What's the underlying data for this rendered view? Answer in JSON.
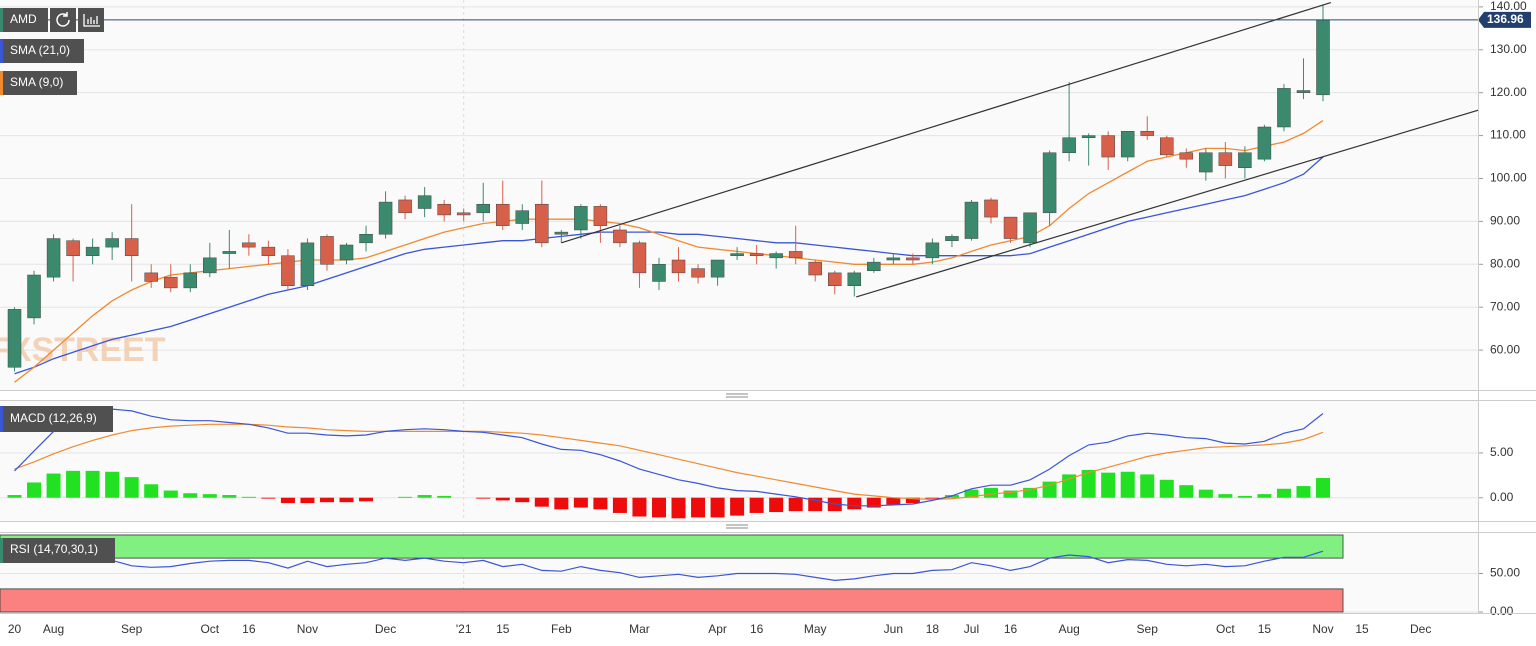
{
  "chart_data": [
    {
      "type": "candlestick",
      "title": "AMD",
      "watermark": "FXSTREET",
      "categories": [
        "20",
        null,
        "Aug",
        null,
        null,
        null,
        "Sep",
        null,
        null,
        null,
        "Oct",
        null,
        "16",
        null,
        null,
        "Nov",
        null,
        null,
        null,
        "Dec",
        null,
        null,
        null,
        "'21",
        null,
        "15",
        null,
        null,
        "Feb",
        null,
        null,
        null,
        "Mar",
        null,
        null,
        null,
        "Apr",
        null,
        "16",
        null,
        null,
        "May",
        null,
        null,
        null,
        "Jun",
        null,
        "18",
        null,
        "Jul",
        null,
        "16",
        null,
        null,
        "Aug",
        null,
        null,
        null,
        "Sep",
        null,
        null,
        null,
        "Oct",
        null,
        "15",
        null,
        null,
        "Nov",
        null,
        "15",
        null,
        null,
        "Dec",
        null
      ],
      "open": [
        56,
        67.5,
        77,
        85.5,
        82,
        84,
        86,
        78,
        77,
        74.5,
        78,
        82.5,
        85,
        84,
        82,
        75,
        86.5,
        81,
        85,
        87,
        95,
        93,
        94,
        92,
        92,
        94,
        89.5,
        94,
        87,
        88,
        93.5,
        88,
        85,
        76,
        81,
        79,
        77,
        82,
        82.5,
        81.5,
        83,
        80.5,
        78,
        75,
        78.5,
        81,
        81.5,
        81.5,
        85.5,
        86,
        95,
        91,
        85,
        92,
        106,
        109.5,
        110,
        105,
        111,
        109.5,
        106,
        101.5,
        106,
        102.5,
        104.5,
        112,
        120,
        119.5,
        null,
        null,
        null,
        null,
        null,
        null
      ],
      "high": [
        70,
        78.5,
        87,
        86,
        86,
        87.5,
        94,
        80,
        80,
        80,
        85,
        88,
        87,
        85.5,
        83.5,
        86,
        87,
        85,
        89,
        97,
        96,
        98,
        95,
        93,
        99,
        99.5,
        94,
        99.5,
        88,
        94,
        94,
        89,
        85.5,
        81.5,
        84,
        80,
        81,
        84,
        84.5,
        83,
        89,
        81,
        78.5,
        78.5,
        81.5,
        82.5,
        82.5,
        86,
        87,
        95,
        95.5,
        91,
        92,
        106.5,
        122.5,
        110.5,
        111,
        111,
        114.5,
        110,
        107,
        107,
        108.5,
        107.5,
        112.5,
        122,
        128,
        140.5,
        null,
        null,
        null,
        null,
        null,
        null
      ],
      "low": [
        55,
        66,
        76,
        76,
        80,
        81,
        76,
        74.5,
        73.5,
        73.5,
        77,
        79,
        82,
        80,
        74,
        74,
        78.5,
        80,
        83,
        86,
        90.5,
        91,
        90,
        90,
        90,
        88,
        88,
        84,
        85,
        86,
        85,
        84,
        74.5,
        74,
        76,
        75.5,
        75,
        81,
        80,
        79,
        80,
        76,
        73,
        72.5,
        78,
        80,
        80,
        80,
        84,
        85.5,
        89.5,
        85,
        84,
        89,
        104,
        103,
        102,
        104,
        109,
        105,
        102.5,
        99.5,
        100,
        100,
        104,
        111,
        118.5,
        118,
        null,
        null,
        null,
        null,
        null,
        null
      ],
      "close": [
        69.5,
        77.5,
        86,
        82,
        84,
        86,
        82,
        76,
        74.5,
        78,
        81.5,
        83,
        84,
        82,
        75,
        85,
        80,
        84.5,
        87,
        94.5,
        92,
        96,
        91.5,
        91.5,
        94,
        89,
        92.5,
        85,
        87.5,
        93.5,
        89,
        85,
        78,
        80,
        78,
        77,
        81,
        82.5,
        82,
        82.5,
        81.5,
        77.5,
        75,
        78,
        80.5,
        81.5,
        81,
        85,
        86.5,
        94.5,
        91,
        86,
        92,
        106,
        109.5,
        110,
        105,
        111,
        110,
        105.5,
        104.5,
        106,
        103,
        106,
        112,
        121,
        120.5,
        137,
        null,
        null,
        null,
        null,
        null,
        null
      ],
      "up_color": "#3b8a6e",
      "down_color": "#d7604b",
      "series": [
        {
          "name": "SMA (21,0)",
          "color": "#3a55d6",
          "values": [
            54.5,
            56,
            58,
            59.5,
            61,
            62.5,
            63.5,
            64.5,
            65.5,
            67,
            68.5,
            70,
            71.5,
            73,
            74,
            75,
            76.5,
            78,
            79.5,
            81,
            82.5,
            83.5,
            84,
            84.5,
            85,
            85.5,
            85.5,
            86,
            86.5,
            87,
            87.5,
            87.5,
            87.5,
            87.5,
            87,
            87,
            86.5,
            86,
            85.5,
            85,
            85,
            84.5,
            84,
            83.5,
            83,
            82.5,
            82,
            82,
            82,
            82,
            82,
            82,
            82.5,
            84,
            85.5,
            87,
            88.5,
            90,
            91,
            92,
            93,
            94,
            95,
            96,
            97.5,
            99,
            101,
            105,
            null,
            null,
            null,
            null,
            null,
            null
          ]
        },
        {
          "name": "SMA (9,0)",
          "color": "#f08a30",
          "values": [
            52.5,
            56,
            60,
            64,
            68,
            71.5,
            74,
            76,
            77.5,
            78,
            78.5,
            79,
            79.5,
            80,
            80.5,
            81,
            81,
            81,
            81.5,
            83,
            84.5,
            86,
            87.5,
            88.5,
            89.5,
            90,
            90.5,
            90.5,
            90.5,
            90.5,
            90,
            89.5,
            88.5,
            87,
            85.5,
            84,
            83.5,
            83,
            82.5,
            82,
            81.5,
            81,
            80.5,
            80,
            80,
            80,
            80,
            80.5,
            81.5,
            83,
            84.5,
            85.5,
            86.5,
            89,
            93,
            96.5,
            99,
            101.5,
            104,
            105,
            106,
            107,
            107,
            106.5,
            107.5,
            108.5,
            110.5,
            113.5,
            null,
            null,
            null,
            null,
            null,
            null
          ]
        }
      ],
      "trendlines": [
        {
          "x": [
            28,
            67.4
          ],
          "y": [
            85,
            141
          ]
        },
        {
          "x": [
            43.1,
            75
          ],
          "y": [
            72.4,
            116
          ]
        }
      ],
      "last_price": 136.96,
      "ylim": [
        50.7,
        141.6
      ],
      "yticks": [
        {
          "value": 60,
          "label": "60.00"
        },
        {
          "value": 70,
          "label": "70.00"
        },
        {
          "value": 80,
          "label": "80.00"
        },
        {
          "value": 90,
          "label": "90.00"
        },
        {
          "value": 100,
          "label": "100.00"
        },
        {
          "value": 110,
          "label": "110.00"
        },
        {
          "value": 120,
          "label": "120.00"
        },
        {
          "value": 130,
          "label": "130.00"
        },
        {
          "value": 140,
          "label": "140.00"
        }
      ],
      "grid": true
    },
    {
      "type": "macd",
      "title": "MACD (12,26,9)",
      "macd": {
        "color": "#3a55d6",
        "values": [
          3,
          5.2,
          7.4,
          8.8,
          9.4,
          9.9,
          9.7,
          9.1,
          8.7,
          8.6,
          8.6,
          8.4,
          8.2,
          7.8,
          7.2,
          7.2,
          7,
          6.9,
          7,
          7.4,
          7.6,
          7.7,
          7.6,
          7.4,
          7.3,
          7,
          6.7,
          6,
          5.4,
          5.3,
          4.8,
          4.1,
          3.2,
          2.6,
          2,
          1.6,
          1.1,
          0.8,
          0.7,
          0.4,
          0.1,
          -0.3,
          -0.7,
          -0.9,
          -0.9,
          -0.8,
          -0.7,
          -0.3,
          0.2,
          1,
          1.4,
          1.4,
          2,
          3.2,
          4.7,
          5.9,
          6.2,
          6.9,
          7.2,
          7,
          6.7,
          6.6,
          6.1,
          6,
          6.3,
          7.2,
          7.7,
          9.4,
          null,
          null,
          null,
          null,
          null,
          null
        ]
      },
      "signal": {
        "color": "#f08a30",
        "values": [
          3.2,
          4,
          4.9,
          5.7,
          6.4,
          7,
          7.5,
          7.8,
          8,
          8.1,
          8.2,
          8.2,
          8.2,
          8.1,
          7.9,
          7.8,
          7.6,
          7.5,
          7.4,
          7.4,
          7.4,
          7.4,
          7.4,
          7.4,
          7.4,
          7.3,
          7.2,
          7,
          6.7,
          6.4,
          6.1,
          5.8,
          5.3,
          4.8,
          4.3,
          3.8,
          3.3,
          2.8,
          2.4,
          2,
          1.6,
          1.2,
          0.8,
          0.4,
          0.2,
          0,
          -0.1,
          -0.2,
          -0.1,
          0.1,
          0.4,
          0.6,
          0.9,
          1.4,
          2.1,
          2.8,
          3.4,
          4,
          4.6,
          5,
          5.3,
          5.6,
          5.7,
          5.8,
          5.9,
          6.1,
          6.5,
          7.3,
          null,
          null,
          null,
          null,
          null,
          null
        ]
      },
      "histogram": {
        "up_color": "#22e022",
        "down_color": "#ee0b0b",
        "values": [
          0.3,
          1.7,
          2.7,
          3,
          3,
          2.9,
          2.3,
          1.5,
          0.8,
          0.5,
          0.4,
          0.3,
          0.1,
          -0.1,
          -0.6,
          -0.6,
          -0.5,
          -0.5,
          -0.4,
          0,
          0.1,
          0.3,
          0.2,
          0,
          -0.1,
          -0.3,
          -0.5,
          -1,
          -1.3,
          -1.1,
          -1.3,
          -1.7,
          -2.1,
          -2.2,
          -2.3,
          -2.2,
          -2.2,
          -2,
          -1.7,
          -1.6,
          -1.5,
          -1.5,
          -1.5,
          -1.3,
          -1.1,
          -0.8,
          -0.6,
          -0.1,
          0.3,
          0.9,
          1.1,
          0.8,
          1.1,
          1.8,
          2.6,
          3.1,
          2.8,
          2.9,
          2.6,
          2,
          1.4,
          0.9,
          0.4,
          0.2,
          0.4,
          1,
          1.3,
          2.2,
          null,
          null,
          null,
          null,
          null,
          null
        ]
      },
      "ylim": [
        -2.6,
        10.8
      ],
      "yticks": [
        {
          "value": 0,
          "label": "0.00"
        },
        {
          "value": 5,
          "label": "5.00"
        }
      ],
      "grid": true
    },
    {
      "type": "rsi",
      "title": "RSI (14,70,30,1)",
      "color": "#3a55d6",
      "values": [
        67,
        78,
        74,
        74,
        71,
        67,
        60,
        58,
        59,
        63,
        66,
        67,
        67,
        64,
        57,
        66,
        59,
        62,
        64,
        70,
        67,
        70,
        66,
        64,
        67,
        59,
        62,
        54,
        53,
        59,
        54,
        51,
        45,
        47,
        49,
        45,
        47,
        50,
        50,
        50,
        49,
        45,
        41,
        43,
        47,
        50,
        50,
        54,
        55,
        64,
        60,
        54,
        59,
        70,
        74,
        72,
        64,
        68,
        67,
        62,
        60,
        62,
        59,
        60,
        66,
        71,
        71,
        79,
        null,
        null,
        null,
        null,
        null,
        null
      ],
      "bands": [
        {
          "from": 70,
          "to": 100,
          "color": "#80f080"
        },
        {
          "from": 0,
          "to": 30,
          "color": "#fb8080"
        }
      ],
      "ylim": [
        -1.3,
        102.6
      ],
      "yticks": [
        {
          "value": 0,
          "label": "0.00"
        },
        {
          "value": 50,
          "label": "50.00"
        }
      ],
      "grid": true
    }
  ]
}
